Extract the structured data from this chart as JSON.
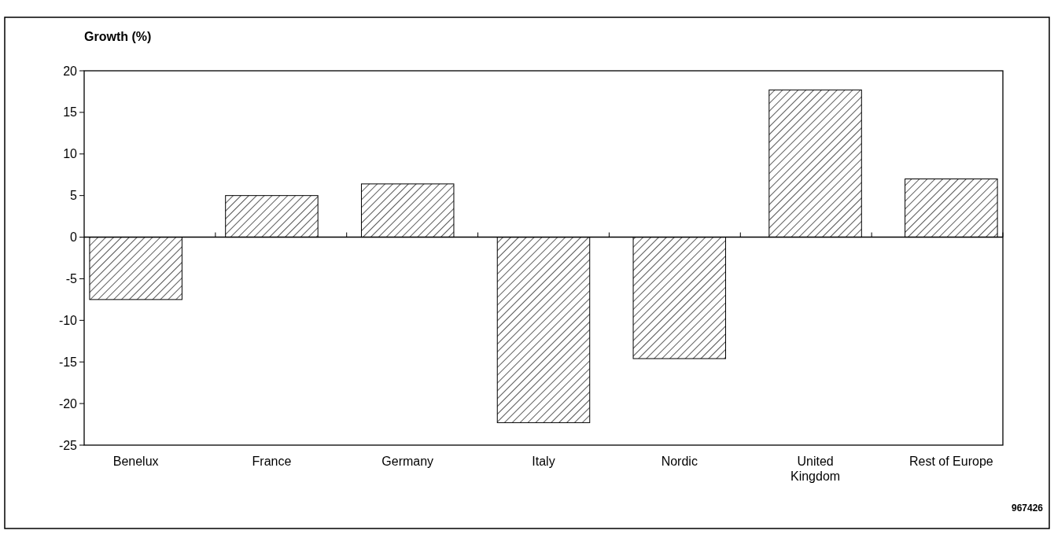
{
  "chart_data": {
    "type": "bar",
    "ylabel": "Growth (%)",
    "categories": [
      "Benelux",
      "France",
      "Germany",
      "Italy",
      "Nordic",
      "United Kingdom",
      "Rest of Europe"
    ],
    "values": [
      -7.5,
      5.0,
      6.4,
      -22.3,
      -14.6,
      17.7,
      7.0
    ],
    "color": "#000000",
    "ylim": [
      -25,
      20
    ],
    "yticks": [
      -25,
      -20,
      -15,
      -10,
      -5,
      0,
      5,
      10,
      15,
      20
    ],
    "annotations": [
      "967426"
    ]
  }
}
